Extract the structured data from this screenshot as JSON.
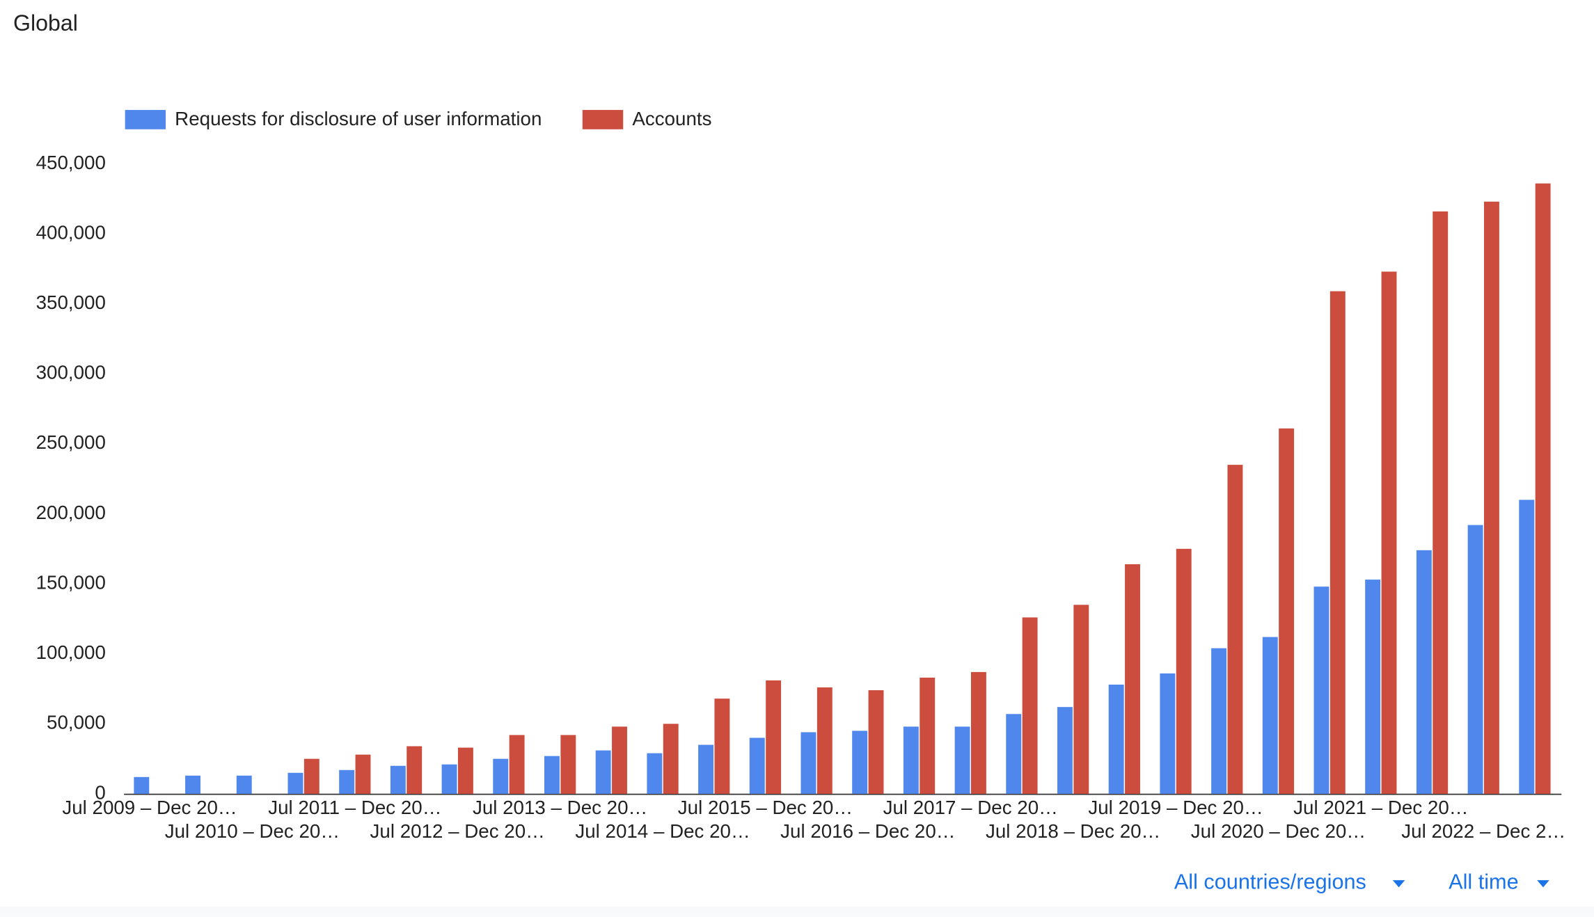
{
  "header": {
    "title": "Global"
  },
  "chart_data": {
    "type": "bar",
    "categories": [
      "Jul 2009 – Dec 20…",
      null,
      "Jul 2010 – Dec 20…",
      null,
      "Jul 2011 – Dec 20…",
      null,
      "Jul 2012 – Dec 20…",
      null,
      "Jul 2013 – Dec 20…",
      null,
      "Jul 2014 – Dec 20…",
      null,
      "Jul 2015 – Dec 20…",
      null,
      "Jul 2016 – Dec 20…",
      null,
      "Jul 2017 – Dec 20…",
      null,
      "Jul 2018 – Dec 20…",
      null,
      "Jul 2019 – Dec 20…",
      null,
      "Jul 2020 – Dec 20…",
      null,
      "Jul 2021 – Dec 20…",
      null,
      "Jul 2022 – Dec 2…",
      null
    ],
    "series": [
      {
        "name": "Requests for disclosure of user information",
        "color": "#5087ec",
        "values": [
          12000,
          13000,
          13000,
          15000,
          17000,
          20000,
          21000,
          25000,
          27000,
          31000,
          29000,
          35000,
          40000,
          44000,
          45000,
          48000,
          48000,
          57000,
          62000,
          78000,
          86000,
          104000,
          112000,
          148000,
          153000,
          174000,
          192000,
          210000
        ]
      },
      {
        "name": "Accounts",
        "color": "#cc4d3e",
        "values": [
          null,
          null,
          null,
          25000,
          28000,
          34000,
          33000,
          42000,
          42000,
          48000,
          50000,
          68000,
          81000,
          76000,
          74000,
          83000,
          87000,
          126000,
          135000,
          164000,
          175000,
          235000,
          261000,
          359000,
          373000,
          416000,
          423000,
          436000
        ]
      }
    ],
    "ylim": [
      0,
      450000
    ],
    "yticks": [
      0,
      {
        "value": 50000,
        "label": "50,000"
      },
      {
        "value": 100000,
        "label": "100,000"
      },
      {
        "value": 150000,
        "label": "150,000"
      },
      {
        "value": 200000,
        "label": "200,000"
      },
      {
        "value": 250000,
        "label": "250,000"
      },
      {
        "value": 300000,
        "label": "300,000"
      },
      {
        "value": 350000,
        "label": "350,000"
      },
      {
        "value": 400000,
        "label": "400,000"
      },
      {
        "value": 450000,
        "label": "450,000"
      }
    ],
    "grid": false
  },
  "filters": {
    "region": "All countries/regions",
    "period": "All time"
  }
}
